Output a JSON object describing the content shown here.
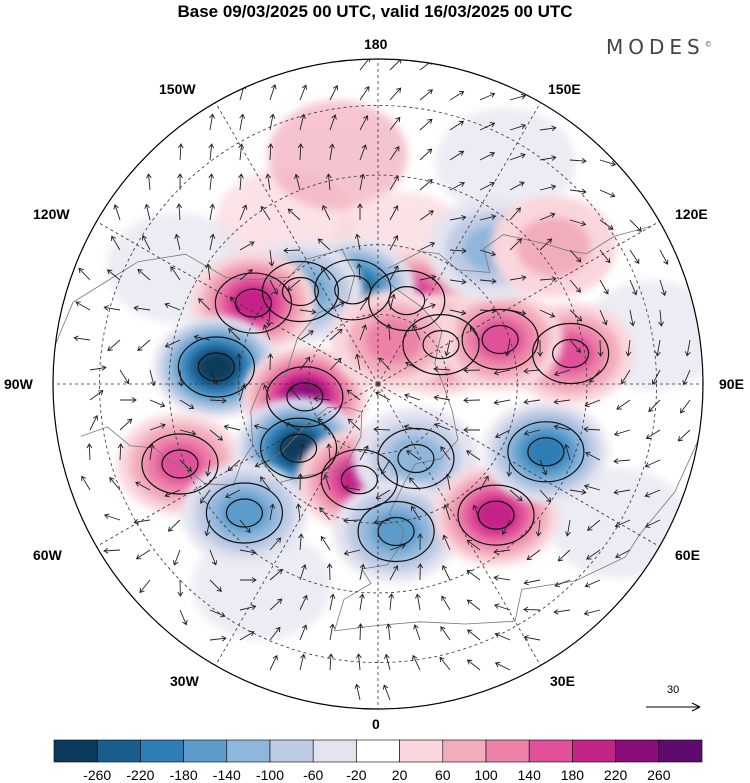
{
  "title": "Base 09/03/2025 00 UTC, valid 16/03/2025 00 UTC",
  "brand": "MODES",
  "brand_mark": "©",
  "longitudes": {
    "n180": "180",
    "n150w": "150W",
    "n150e": "150E",
    "n120w": "120W",
    "n120e": "120E",
    "n90w": "90W",
    "n90e": "90E",
    "n60w": "60W",
    "n60e": "60E",
    "n30w": "30W",
    "n30e": "30E",
    "n0": "0"
  },
  "vector_scale_label": "30",
  "colorbar": {
    "labels": [
      "-260",
      "-220",
      "-180",
      "-140",
      "-100",
      "-60",
      "-20",
      "20",
      "60",
      "100",
      "140",
      "180",
      "220",
      "260"
    ],
    "colors": [
      "#0d3a5c",
      "#1a5e8e",
      "#2f7db5",
      "#5b9cca",
      "#8fb6db",
      "#bfcbe4",
      "#e4e4f0",
      "#ffffff",
      "#f9d7dc",
      "#f2adbc",
      "#ec82a8",
      "#e0519a",
      "#c42388",
      "#8c0c7a",
      "#5e0a6e"
    ]
  },
  "anomaly_cells": [
    {
      "lon": 161,
      "lat": 71,
      "value": 190
    },
    {
      "lon": -165,
      "lat": 69,
      "value": -200
    },
    {
      "lon": 122,
      "lat": 74,
      "value": 120
    },
    {
      "lon": -140,
      "lat": 64,
      "value": -130
    },
    {
      "lon": -123,
      "lat": 58,
      "value": 160
    },
    {
      "lon": -96,
      "lat": 55,
      "value": -260
    },
    {
      "lon": -80,
      "lat": 74,
      "value": 200
    },
    {
      "lon": -68,
      "lat": 44,
      "value": 150
    },
    {
      "lon": -51,
      "lat": 68,
      "value": -240
    },
    {
      "lon": -46,
      "lat": 50,
      "value": -150
    },
    {
      "lon": -11,
      "lat": 69,
      "value": 190
    },
    {
      "lon": 27,
      "lat": 72,
      "value": -110
    },
    {
      "lon": 7,
      "lat": 58,
      "value": -140
    },
    {
      "lon": 42,
      "lat": 52,
      "value": 170
    },
    {
      "lon": 68,
      "lat": 51,
      "value": -160
    },
    {
      "lon": 99,
      "lat": 48,
      "value": 130
    },
    {
      "lon": 110,
      "lat": 62,
      "value": 120
    },
    {
      "lon": 140,
      "lat": 52,
      "value": -90
    },
    {
      "lon": 160,
      "lat": 80,
      "value": 80
    },
    {
      "lon": 128,
      "lat": 42,
      "value": 70
    }
  ]
}
